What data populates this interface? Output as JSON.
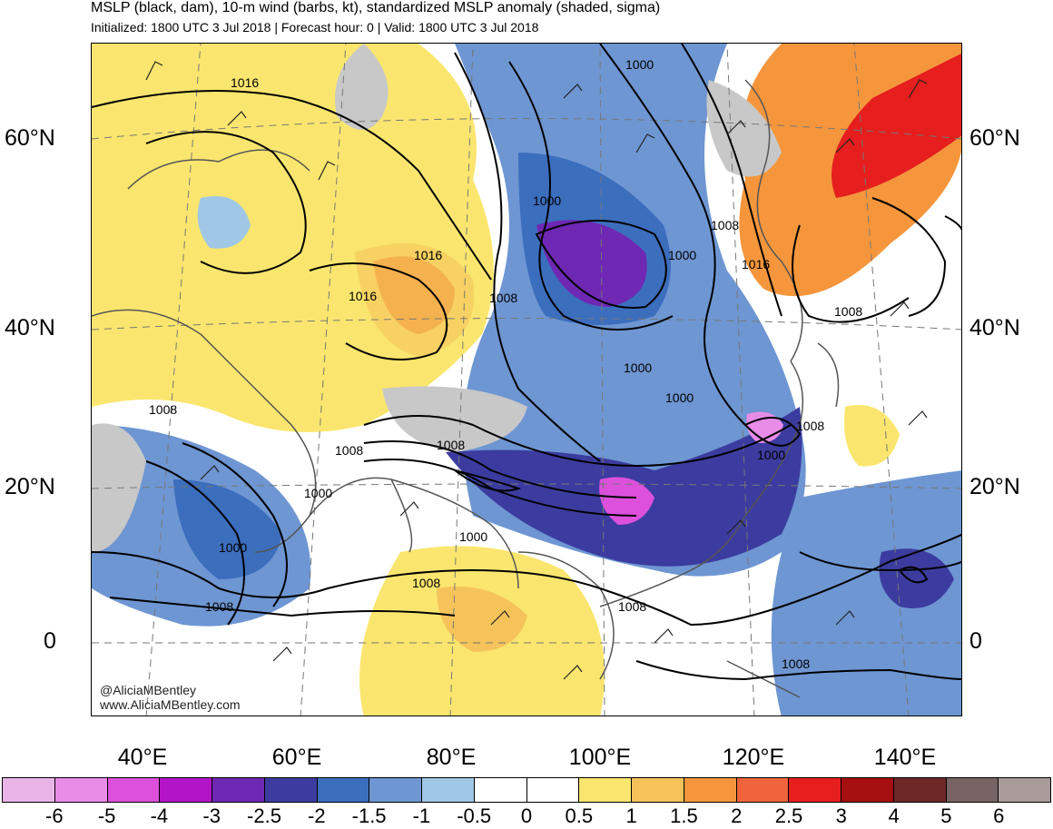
{
  "header": {
    "title": "MSLP (black, dam), 10-m wind (barbs, kt), standardized MSLP anomaly (shaded, sigma)",
    "subtitle": "Initialized: 1800 UTC 3 Jul 2018 | Forecast hour: 0 | Valid: 1800 UTC 3 Jul 2018"
  },
  "latitude_labels": [
    "60°N",
    "40°N",
    "20°N",
    "0"
  ],
  "longitude_labels": [
    "40°E",
    "60°E",
    "80°E",
    "100°E",
    "120°E",
    "140°E"
  ],
  "credits": {
    "handle": "@AliciaMBentley",
    "website": "www.AliciaMBentley.com"
  },
  "contour_labels": [
    "1016",
    "1016",
    "1016",
    "1016",
    "1000",
    "1000",
    "1008",
    "1000",
    "1008",
    "1000",
    "1000",
    "1008",
    "1008",
    "1008",
    "1008",
    "1000",
    "1000",
    "1008",
    "1000",
    "1000",
    "1008",
    "1008",
    "1008",
    "1008"
  ],
  "colorbar": {
    "colors": [
      "#e8b4e8",
      "#e88ce8",
      "#dc50dc",
      "#b414c8",
      "#6e28b4",
      "#3c3ca0",
      "#3c6ebe",
      "#6e96d2",
      "#a0c8e6",
      "#ffffff",
      "#ffffff",
      "#fae66e",
      "#f5c35a",
      "#f5963c",
      "#f0643c",
      "#e61e1e",
      "#a50f0f",
      "#6e2828",
      "#786464",
      "#aa9b9b"
    ],
    "labels": [
      "-6",
      "-5",
      "-4",
      "-3",
      "-2.5",
      "-2",
      "-1.5",
      "-1",
      "-0.5",
      "0",
      "0.5",
      "1",
      "1.5",
      "2",
      "2.5",
      "3",
      "4",
      "5",
      "6"
    ]
  }
}
